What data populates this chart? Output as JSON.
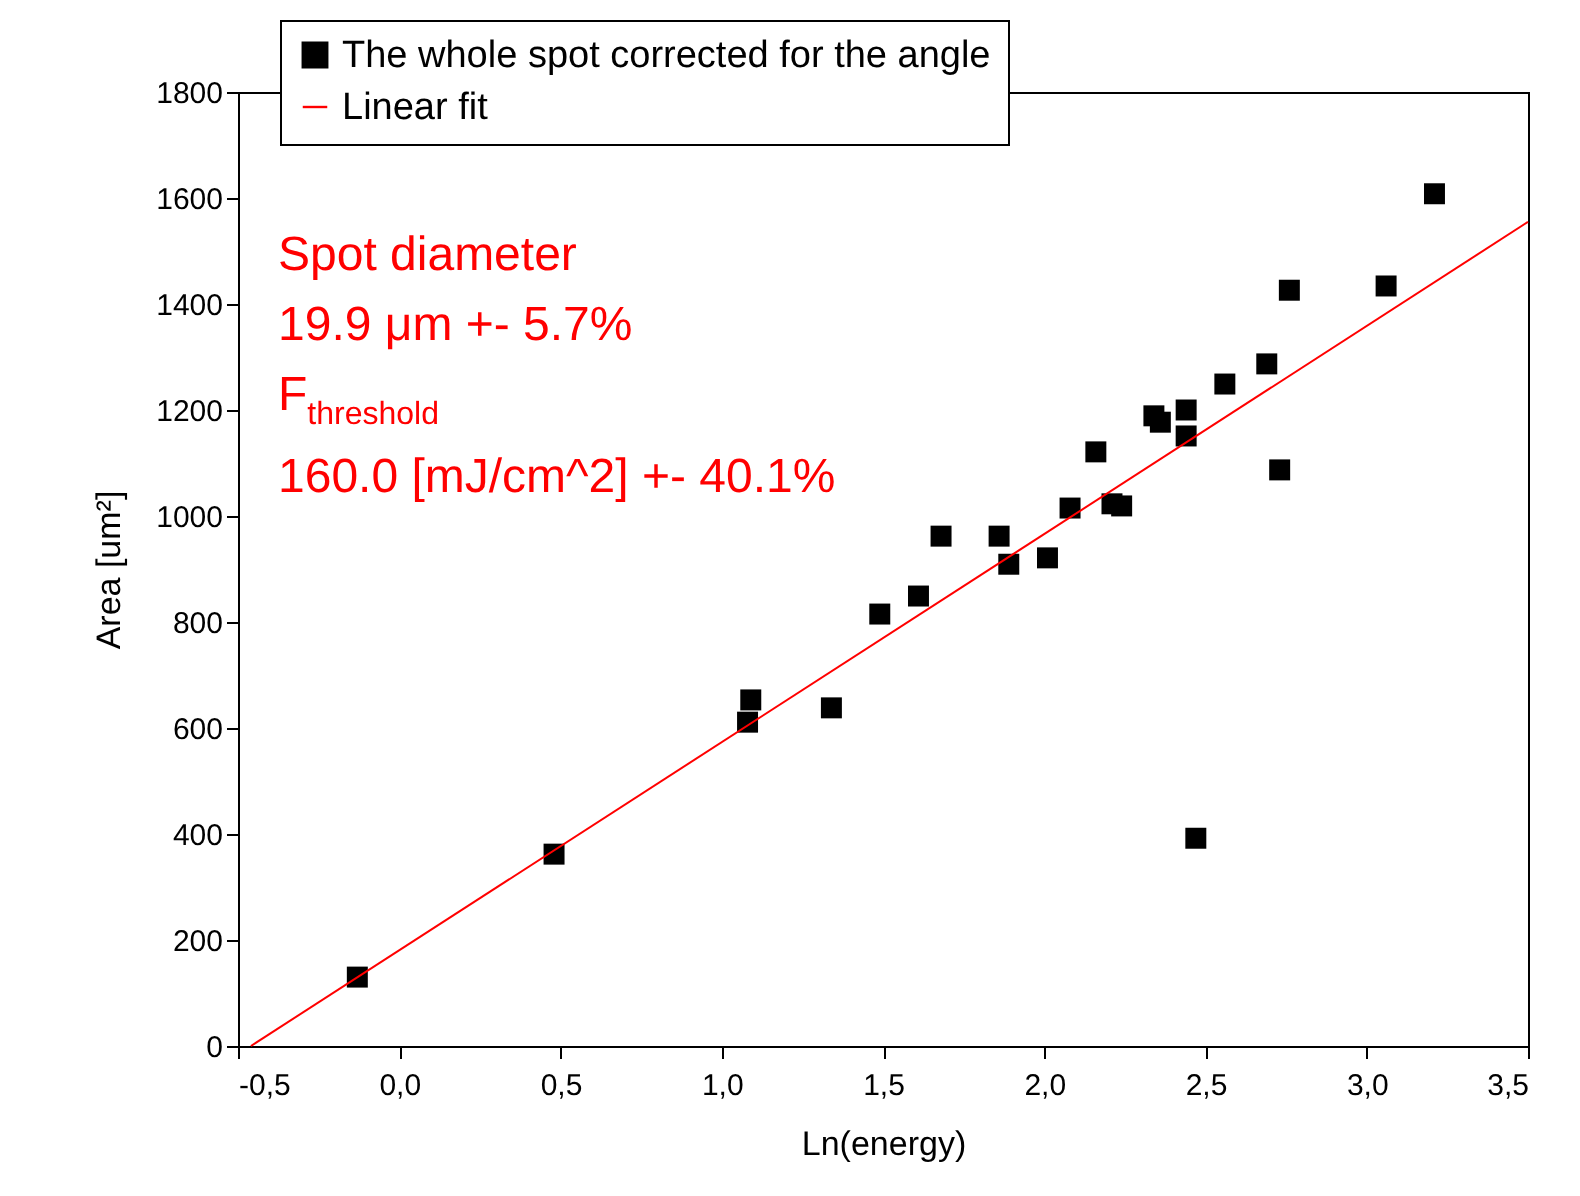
{
  "chart_data": {
    "type": "scatter",
    "xlabel": "Ln(energy)",
    "ylabel": "Area [um²]",
    "xlim": [
      -0.5,
      3.5
    ],
    "ylim": [
      0,
      1800
    ],
    "xticks": [
      {
        "value": -0.5,
        "label": "-0,5"
      },
      {
        "value": 0,
        "label": "0,0"
      },
      {
        "value": 0.5,
        "label": "0,5"
      },
      {
        "value": 1,
        "label": "1,0"
      },
      {
        "value": 1.5,
        "label": "1,5"
      },
      {
        "value": 2,
        "label": "2,0"
      },
      {
        "value": 2.5,
        "label": "2,5"
      },
      {
        "value": 3,
        "label": "3,0"
      },
      {
        "value": 3.5,
        "label": "3,5"
      }
    ],
    "yticks": [
      0,
      200,
      400,
      600,
      800,
      1000,
      1200,
      1400,
      1600,
      1800
    ],
    "grid": false,
    "legend": "top",
    "series": [
      {
        "name": "The whole spot corrected for the angle",
        "marker": "square",
        "color": "#000000",
        "x": [
          -0.13,
          0.48,
          1.08,
          1.09,
          1.34,
          1.49,
          1.61,
          1.68,
          1.86,
          1.89,
          2.01,
          2.08,
          2.16,
          2.21,
          2.24,
          2.34,
          2.36,
          2.44,
          2.44,
          2.47,
          2.56,
          2.69,
          2.73,
          2.76,
          3.06,
          3.21
        ],
        "values": [
          130,
          362,
          611,
          653,
          638,
          815,
          849,
          962,
          962,
          909,
          921,
          1015,
          1121,
          1023,
          1019,
          1189,
          1177,
          1200,
          1151,
          392,
          1249,
          1287,
          1087,
          1426,
          1434,
          1608
        ]
      },
      {
        "name": "Linear fit",
        "type": "line",
        "color": "#ff0000",
        "x": [
          -0.46,
          3.5
        ],
        "values": [
          0,
          1555
        ]
      }
    ],
    "annotations": [
      "Spot diameter",
      "19.9 μm +- 5.7%",
      "F$_{threshold}$",
      "160.0 [mJ/cm^2] +- 40.1%"
    ]
  }
}
